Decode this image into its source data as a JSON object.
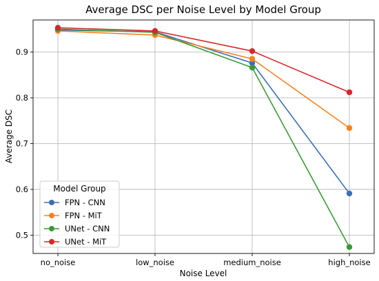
{
  "chart_data": {
    "type": "line",
    "title": "Average DSC per Noise Level by Model Group",
    "xlabel": "Noise Level",
    "ylabel": "Average DSC",
    "categories": [
      "no_noise",
      "low_noise",
      "medium_noise",
      "high_noise"
    ],
    "ylim": [
      0.46,
      0.97
    ],
    "yticks": [
      0.5,
      0.6,
      0.7,
      0.8,
      0.9
    ],
    "grid": true,
    "legend": {
      "title": "Model Group",
      "placement": "lower-left"
    },
    "series": [
      {
        "name": "FPN - CNN",
        "color": "#3b6fb6",
        "marker": "circle",
        "values": [
          0.948,
          0.944,
          0.876,
          0.591
        ]
      },
      {
        "name": "FPN - MiT",
        "color": "#f5821f",
        "marker": "circle",
        "values": [
          0.946,
          0.937,
          0.885,
          0.734
        ]
      },
      {
        "name": "UNet - CNN",
        "color": "#3a9a35",
        "marker": "circle",
        "values": [
          0.95,
          0.943,
          0.866,
          0.474
        ]
      },
      {
        "name": "UNet - MiT",
        "color": "#d62728",
        "marker": "circle",
        "values": [
          0.953,
          0.946,
          0.902,
          0.812
        ]
      }
    ]
  }
}
